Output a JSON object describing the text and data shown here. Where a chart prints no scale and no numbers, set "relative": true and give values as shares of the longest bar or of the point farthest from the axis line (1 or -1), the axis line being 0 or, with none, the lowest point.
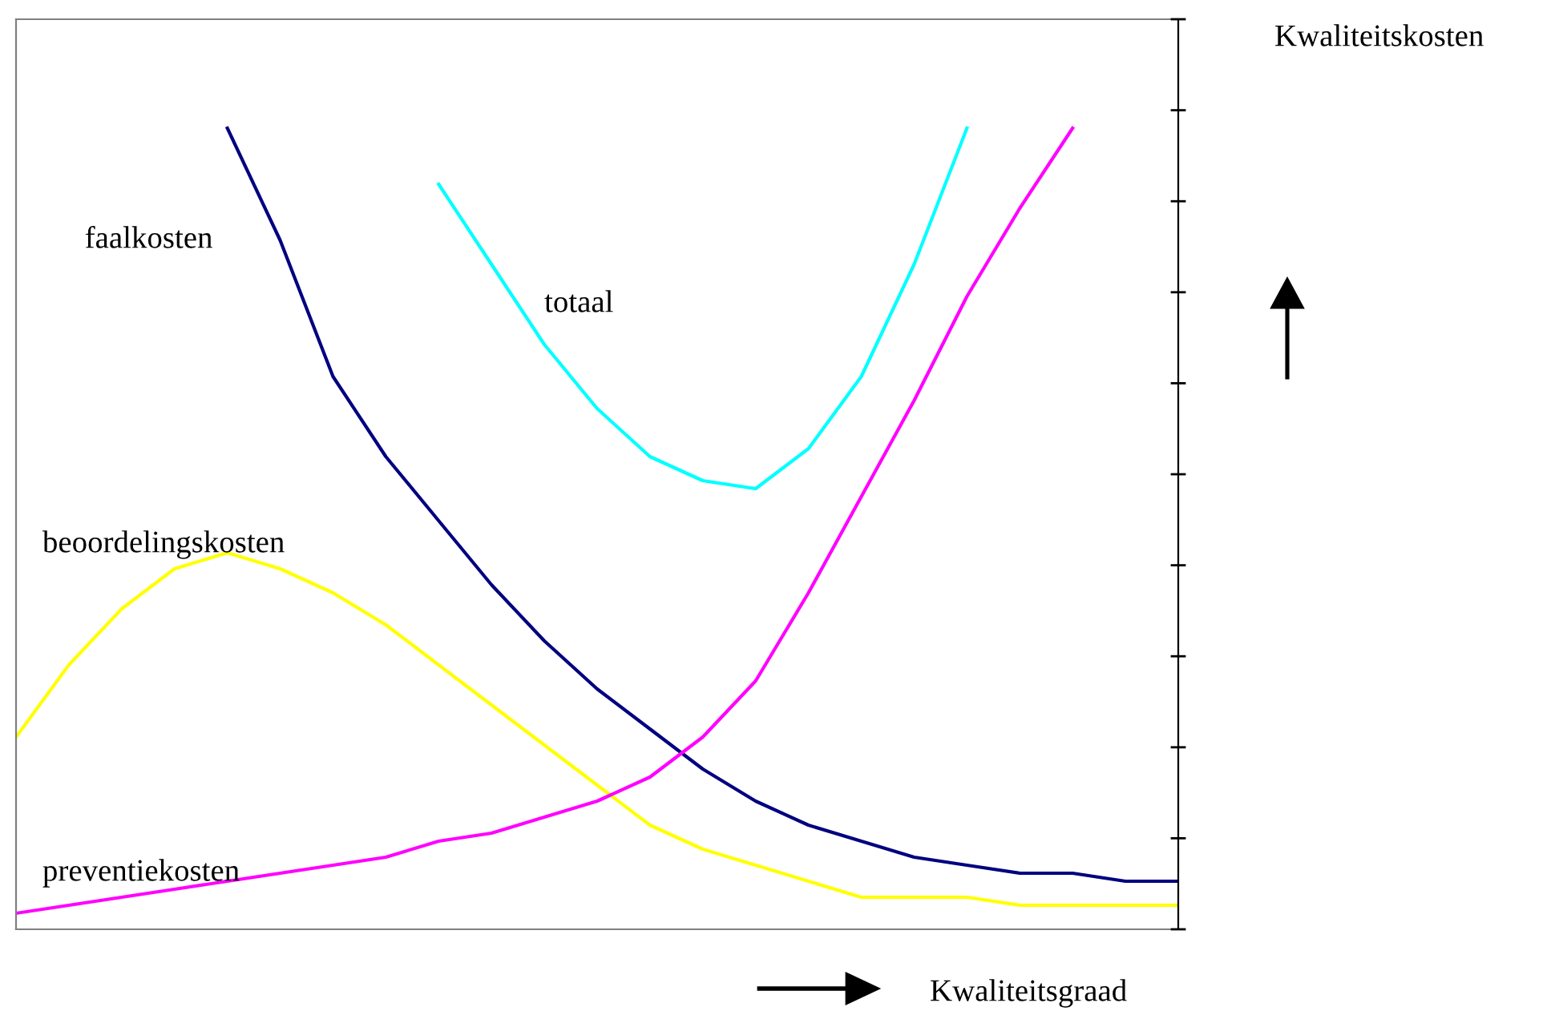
{
  "chart_data": {
    "type": "line",
    "relative": true,
    "xlabel": "Kwaliteitsgraad",
    "ylabel": "Kwaliteitskosten",
    "categories": [
      null,
      null,
      null,
      null,
      null,
      null,
      null,
      null,
      null,
      null,
      null,
      null,
      null,
      null,
      null,
      null,
      null,
      null,
      null,
      null,
      null,
      null,
      null
    ],
    "series": [
      {
        "name": "faalkosten",
        "color": "#000080",
        "values": [
          null,
          null,
          null,
          null,
          1.0,
          0.86,
          0.69,
          0.59,
          0.51,
          0.43,
          0.36,
          0.3,
          0.25,
          0.2,
          0.16,
          0.13,
          0.11,
          0.09,
          0.08,
          0.07,
          0.07,
          0.06,
          0.06
        ]
      },
      {
        "name": "totaal",
        "color": "#00ffff",
        "values": [
          null,
          null,
          null,
          null,
          null,
          null,
          null,
          null,
          0.93,
          0.83,
          0.73,
          0.65,
          0.59,
          0.56,
          0.55,
          0.6,
          0.69,
          0.83,
          1.0,
          null,
          null,
          null,
          null
        ]
      },
      {
        "name": "beoordelingskosten",
        "color": "#ffff00",
        "values": [
          0.24,
          0.33,
          0.4,
          0.45,
          0.47,
          0.45,
          0.42,
          0.38,
          0.33,
          0.28,
          0.23,
          0.18,
          0.13,
          0.1,
          0.08,
          0.06,
          0.04,
          0.04,
          0.04,
          0.03,
          0.03,
          0.03,
          0.03
        ]
      },
      {
        "name": "preventiekosten",
        "color": "#ff00ff",
        "values": [
          0.02,
          0.03,
          0.04,
          0.05,
          0.06,
          0.07,
          0.08,
          0.09,
          0.11,
          0.12,
          0.14,
          0.16,
          0.19,
          0.24,
          0.31,
          0.42,
          0.54,
          0.66,
          0.79,
          0.9,
          1.0,
          null,
          null
        ]
      }
    ],
    "marker": "none",
    "line_style": "solid",
    "tick_labels": false
  }
}
